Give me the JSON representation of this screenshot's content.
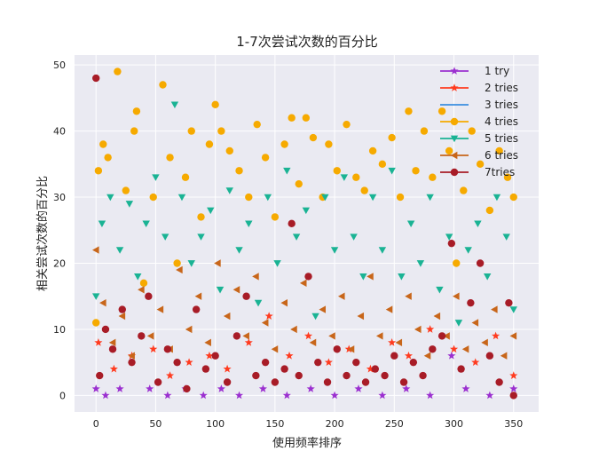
{
  "chart_data": {
    "type": "scatter",
    "title": "1-7次尝试次数的百分比",
    "xlabel": "使用频率排序",
    "ylabel": "相关尝试次数的百分比",
    "xlim": [
      -18,
      371
    ],
    "ylim": [
      -2.5,
      51.5
    ],
    "xticks": [
      0,
      50,
      100,
      150,
      200,
      250,
      300,
      350
    ],
    "yticks": [
      0,
      10,
      20,
      30,
      40,
      50
    ],
    "grid": true,
    "legend_position": "top-right",
    "n_points": 355,
    "series": [
      {
        "name": "1 try",
        "color": "#9b30d0",
        "marker": "star",
        "points": [
          [
            0,
            1
          ],
          [
            8,
            0
          ],
          [
            20,
            1
          ],
          [
            45,
            1
          ],
          [
            60,
            0
          ],
          [
            75,
            1
          ],
          [
            90,
            0
          ],
          [
            105,
            1
          ],
          [
            120,
            0
          ],
          [
            140,
            1
          ],
          [
            160,
            0
          ],
          [
            180,
            1
          ],
          [
            200,
            0
          ],
          [
            220,
            1
          ],
          [
            240,
            0
          ],
          [
            260,
            1
          ],
          [
            280,
            0
          ],
          [
            298,
            6
          ],
          [
            310,
            1
          ],
          [
            330,
            0
          ],
          [
            350,
            1
          ]
        ]
      },
      {
        "name": "2 tries",
        "color": "#ff3b1f",
        "marker": "star",
        "points": [
          [
            2,
            8
          ],
          [
            15,
            4
          ],
          [
            30,
            6
          ],
          [
            48,
            7
          ],
          [
            62,
            3
          ],
          [
            78,
            5
          ],
          [
            95,
            6
          ],
          [
            110,
            4
          ],
          [
            128,
            8
          ],
          [
            145,
            12
          ],
          [
            162,
            6
          ],
          [
            178,
            9
          ],
          [
            195,
            5
          ],
          [
            212,
            7
          ],
          [
            230,
            4
          ],
          [
            248,
            8
          ],
          [
            262,
            6
          ],
          [
            280,
            10
          ],
          [
            300,
            7
          ],
          [
            318,
            5
          ],
          [
            335,
            9
          ],
          [
            350,
            3
          ]
        ]
      },
      {
        "name": "3 tries",
        "color": "#3b8fe0",
        "marker": "line",
        "points": []
      },
      {
        "name": "4 tries",
        "color": "#f6aa00",
        "marker": "circle",
        "points": [
          [
            0,
            11
          ],
          [
            2,
            34
          ],
          [
            6,
            38
          ],
          [
            10,
            36
          ],
          [
            18,
            49
          ],
          [
            25,
            31
          ],
          [
            32,
            40
          ],
          [
            34,
            43
          ],
          [
            40,
            17
          ],
          [
            48,
            30
          ],
          [
            56,
            47
          ],
          [
            62,
            36
          ],
          [
            68,
            20
          ],
          [
            75,
            33
          ],
          [
            80,
            40
          ],
          [
            88,
            27
          ],
          [
            95,
            38
          ],
          [
            100,
            44
          ],
          [
            105,
            40
          ],
          [
            112,
            37
          ],
          [
            120,
            34
          ],
          [
            128,
            30
          ],
          [
            135,
            41
          ],
          [
            142,
            36
          ],
          [
            150,
            27
          ],
          [
            158,
            38
          ],
          [
            164,
            42
          ],
          [
            170,
            32
          ],
          [
            176,
            42
          ],
          [
            182,
            39
          ],
          [
            190,
            30
          ],
          [
            195,
            38
          ],
          [
            202,
            34
          ],
          [
            210,
            41
          ],
          [
            218,
            33
          ],
          [
            225,
            31
          ],
          [
            232,
            37
          ],
          [
            240,
            35
          ],
          [
            248,
            39
          ],
          [
            255,
            30
          ],
          [
            262,
            43
          ],
          [
            268,
            34
          ],
          [
            275,
            40
          ],
          [
            282,
            33
          ],
          [
            290,
            43
          ],
          [
            296,
            37
          ],
          [
            302,
            20
          ],
          [
            308,
            31
          ],
          [
            315,
            40
          ],
          [
            322,
            35
          ],
          [
            330,
            28
          ],
          [
            338,
            37
          ],
          [
            345,
            33
          ],
          [
            350,
            30
          ]
        ]
      },
      {
        "name": "5 tries",
        "color": "#1ab394",
        "marker": "triangle-down",
        "points": [
          [
            0,
            15
          ],
          [
            5,
            26
          ],
          [
            12,
            30
          ],
          [
            20,
            22
          ],
          [
            28,
            29
          ],
          [
            35,
            18
          ],
          [
            42,
            26
          ],
          [
            50,
            33
          ],
          [
            58,
            24
          ],
          [
            66,
            44
          ],
          [
            72,
            30
          ],
          [
            80,
            20
          ],
          [
            88,
            24
          ],
          [
            96,
            28
          ],
          [
            104,
            16
          ],
          [
            112,
            31
          ],
          [
            120,
            22
          ],
          [
            128,
            26
          ],
          [
            136,
            14
          ],
          [
            144,
            30
          ],
          [
            152,
            20
          ],
          [
            160,
            34
          ],
          [
            168,
            24
          ],
          [
            176,
            28
          ],
          [
            184,
            12
          ],
          [
            192,
            30
          ],
          [
            200,
            22
          ],
          [
            208,
            33
          ],
          [
            216,
            24
          ],
          [
            224,
            18
          ],
          [
            232,
            30
          ],
          [
            240,
            22
          ],
          [
            248,
            34
          ],
          [
            256,
            18
          ],
          [
            264,
            26
          ],
          [
            272,
            20
          ],
          [
            280,
            30
          ],
          [
            288,
            16
          ],
          [
            296,
            24
          ],
          [
            304,
            11
          ],
          [
            312,
            22
          ],
          [
            320,
            26
          ],
          [
            328,
            18
          ],
          [
            336,
            30
          ],
          [
            344,
            24
          ],
          [
            350,
            13
          ]
        ]
      },
      {
        "name": "6 tries",
        "color": "#c8661a",
        "marker": "triangle-left",
        "points": [
          [
            0,
            22
          ],
          [
            6,
            14
          ],
          [
            14,
            8
          ],
          [
            22,
            12
          ],
          [
            30,
            6
          ],
          [
            38,
            16
          ],
          [
            46,
            9
          ],
          [
            54,
            13
          ],
          [
            62,
            7
          ],
          [
            70,
            19
          ],
          [
            78,
            10
          ],
          [
            86,
            15
          ],
          [
            94,
            8
          ],
          [
            102,
            20
          ],
          [
            110,
            12
          ],
          [
            118,
            16
          ],
          [
            126,
            9
          ],
          [
            134,
            18
          ],
          [
            142,
            11
          ],
          [
            150,
            7
          ],
          [
            158,
            14
          ],
          [
            166,
            10
          ],
          [
            174,
            17
          ],
          [
            182,
            8
          ],
          [
            190,
            13
          ],
          [
            198,
            9
          ],
          [
            206,
            15
          ],
          [
            214,
            7
          ],
          [
            222,
            12
          ],
          [
            230,
            18
          ],
          [
            238,
            9
          ],
          [
            246,
            13
          ],
          [
            254,
            8
          ],
          [
            262,
            15
          ],
          [
            270,
            10
          ],
          [
            278,
            6
          ],
          [
            286,
            12
          ],
          [
            294,
            9
          ],
          [
            302,
            15
          ],
          [
            310,
            7
          ],
          [
            318,
            11
          ],
          [
            326,
            8
          ],
          [
            334,
            13
          ],
          [
            342,
            6
          ],
          [
            350,
            9
          ]
        ]
      },
      {
        "name": "7tries",
        "color": "#a81c27",
        "marker": "circle",
        "points": [
          [
            0,
            48
          ],
          [
            3,
            3
          ],
          [
            8,
            10
          ],
          [
            14,
            7
          ],
          [
            22,
            13
          ],
          [
            30,
            5
          ],
          [
            38,
            9
          ],
          [
            44,
            15
          ],
          [
            52,
            2
          ],
          [
            60,
            7
          ],
          [
            68,
            5
          ],
          [
            76,
            1
          ],
          [
            84,
            13
          ],
          [
            92,
            4
          ],
          [
            100,
            6
          ],
          [
            110,
            2
          ],
          [
            118,
            9
          ],
          [
            126,
            15
          ],
          [
            134,
            3
          ],
          [
            142,
            5
          ],
          [
            150,
            2
          ],
          [
            158,
            4
          ],
          [
            164,
            26
          ],
          [
            170,
            3
          ],
          [
            178,
            18
          ],
          [
            186,
            5
          ],
          [
            194,
            2
          ],
          [
            202,
            7
          ],
          [
            210,
            3
          ],
          [
            218,
            5
          ],
          [
            226,
            2
          ],
          [
            234,
            4
          ],
          [
            242,
            3
          ],
          [
            250,
            6
          ],
          [
            258,
            2
          ],
          [
            266,
            5
          ],
          [
            274,
            3
          ],
          [
            282,
            7
          ],
          [
            290,
            9
          ],
          [
            298,
            23
          ],
          [
            306,
            4
          ],
          [
            314,
            14
          ],
          [
            322,
            20
          ],
          [
            330,
            6
          ],
          [
            338,
            2
          ],
          [
            346,
            14
          ],
          [
            350,
            0
          ]
        ]
      }
    ]
  }
}
